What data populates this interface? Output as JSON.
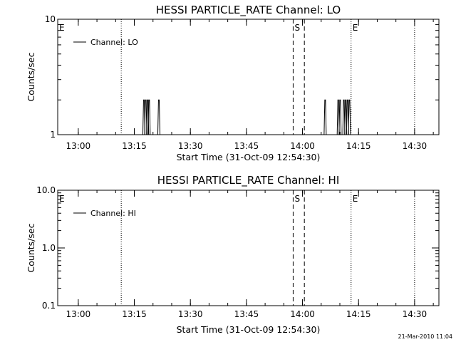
{
  "chart_data": [
    {
      "type": "line",
      "title": "HESSI PARTICLE_RATE Channel: LO",
      "xlabel": "Start Time (31-Oct-09 12:54:30)",
      "ylabel": "Counts/sec",
      "yscale": "log",
      "ylim": [
        1,
        10
      ],
      "xlim": [
        "12:54:30",
        "14:36:30"
      ],
      "x_ticks": [
        "13:00",
        "13:15",
        "13:30",
        "13:45",
        "14:00",
        "14:15",
        "14:30"
      ],
      "y_ticks": [
        "1",
        "10"
      ],
      "legend": {
        "entries": [
          "Channel: LO"
        ],
        "placement": "top-left"
      },
      "series": [
        {
          "name": "Channel: LO",
          "points": [
            {
              "x": "13:17:28",
              "y": 2
            },
            {
              "x": "13:17:58",
              "y": 2
            },
            {
              "x": "13:18:28",
              "y": 2
            },
            {
              "x": "13:18:52",
              "y": 2
            },
            {
              "x": "13:21:28",
              "y": 2
            },
            {
              "x": "14:05:58",
              "y": 2
            },
            {
              "x": "14:09:28",
              "y": 2
            },
            {
              "x": "14:09:58",
              "y": 2
            },
            {
              "x": "14:10:58",
              "y": 2
            },
            {
              "x": "14:11:28",
              "y": 2
            },
            {
              "x": "14:11:58",
              "y": 2
            },
            {
              "x": "14:12:28",
              "y": 2
            }
          ]
        }
      ],
      "markers": {
        "dotted": [
          "13:11:30",
          "14:13:00",
          "14:30:00"
        ],
        "dashed": [
          "13:57:30",
          "14:00:30"
        ],
        "labels": [
          {
            "text": "E",
            "x": "12:54:30"
          },
          {
            "text": "S",
            "x": "13:57:30"
          },
          {
            "text": "E",
            "x": "14:13:00"
          }
        ]
      }
    },
    {
      "type": "line",
      "title": "HESSI PARTICLE_RATE Channel: HI",
      "xlabel": "Start Time (31-Oct-09 12:54:30)",
      "ylabel": "Counts/sec",
      "yscale": "log",
      "ylim": [
        0.1,
        10.0
      ],
      "xlim": [
        "12:54:30",
        "14:36:30"
      ],
      "x_ticks": [
        "13:00",
        "13:15",
        "13:30",
        "13:45",
        "14:00",
        "14:15",
        "14:30"
      ],
      "y_ticks": [
        "0.1",
        "1.0",
        "10.0"
      ],
      "legend": {
        "entries": [
          "Channel: HI"
        ],
        "placement": "top-left"
      },
      "series": [
        {
          "name": "Channel: HI",
          "points": []
        }
      ],
      "markers": {
        "dotted": [
          "13:11:30",
          "14:13:00",
          "14:30:00"
        ],
        "dashed": [
          "13:57:30",
          "14:00:30"
        ],
        "labels": [
          {
            "text": "E",
            "x": "12:54:30"
          },
          {
            "text": "S",
            "x": "13:57:30"
          },
          {
            "text": "E",
            "x": "14:13:00"
          }
        ]
      }
    }
  ],
  "footer": {
    "timestamp": "21-Mar-2010 11:04"
  }
}
